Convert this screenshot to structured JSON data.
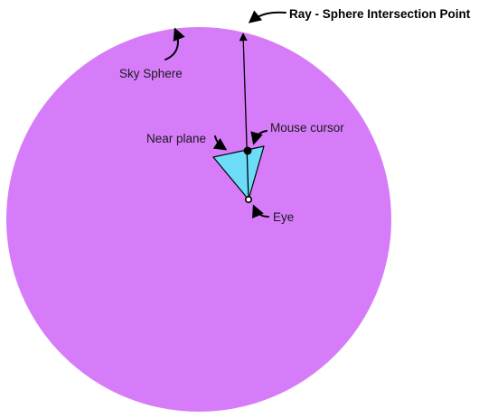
{
  "labels": {
    "intersection": "Ray - Sphere Intersection Point",
    "sky_sphere": "Sky Sphere",
    "near_plane": "Near plane",
    "mouse_cursor": "Mouse cursor",
    "eye": "Eye"
  },
  "colors": {
    "sphere": "#d67cf9",
    "near_plane_fill": "#6cdcf8",
    "ray": "#000000",
    "text": "#1a1a1a"
  }
}
